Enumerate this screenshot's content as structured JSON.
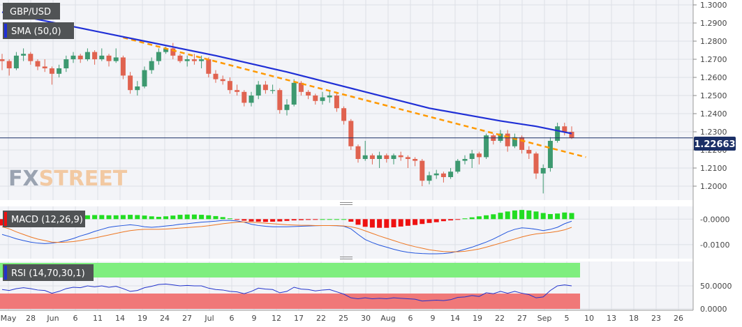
{
  "labels": {
    "symbol": "GBP/USD",
    "sma": "SMA (50,0)",
    "macd": "MACD (12,26,9)",
    "rsi": "RSI (14,70,30,1)",
    "last_price": "1.22663",
    "brand_fx": "FX",
    "brand_street": "STREET"
  },
  "colors": {
    "bull": "#3d9970",
    "bear": "#e06350",
    "sma_line": "#1f2fd6",
    "trendline": "#ff9900",
    "price_line": "#1b2f66",
    "macd_line": "#2255dd",
    "signal_line": "#ee7722",
    "hist_pos": "#22dd22",
    "hist_neg": "#ee1111",
    "rsi_line": "#2233cc",
    "rsi_overbought": "#7fee7f",
    "rsi_oversold": "#f07878",
    "pane_bg": "#f3f4f8",
    "grid": "#dcdfe6",
    "label_box": "#505355"
  },
  "chart_data": [
    {
      "type": "candlestick",
      "title": "GBP/USD",
      "ylim": [
        1.195,
        1.3
      ],
      "yticks": [
        "1.3000",
        "1.2900",
        "1.2800",
        "1.2700",
        "1.2600",
        "1.2500",
        "1.2400",
        "1.2300",
        "1.2200",
        "1.2100",
        "1.2000"
      ],
      "xticks": [
        "May",
        "28",
        "Jun",
        "6",
        "11",
        "14",
        "19",
        "24",
        "27",
        "Jul",
        "6",
        "9",
        "12",
        "17",
        "22",
        "25",
        "30",
        "Aug",
        "6",
        "9",
        "14",
        "19",
        "22",
        "27",
        "Sep",
        "5",
        "10",
        "13",
        "18",
        "23",
        "26"
      ],
      "last": 1.22663,
      "grid": true,
      "candles": [
        [
          1.27,
          1.273,
          1.264,
          1.269
        ],
        [
          1.269,
          1.27,
          1.261,
          1.265
        ],
        [
          1.265,
          1.274,
          1.264,
          1.272
        ],
        [
          1.272,
          1.276,
          1.269,
          1.273
        ],
        [
          1.273,
          1.274,
          1.267,
          1.269
        ],
        [
          1.269,
          1.27,
          1.264,
          1.266
        ],
        [
          1.266,
          1.27,
          1.263,
          1.265
        ],
        [
          1.265,
          1.266,
          1.256,
          1.262
        ],
        [
          1.262,
          1.267,
          1.26,
          1.265
        ],
        [
          1.265,
          1.272,
          1.263,
          1.27
        ],
        [
          1.27,
          1.274,
          1.268,
          1.272
        ],
        [
          1.272,
          1.273,
          1.268,
          1.27
        ],
        [
          1.27,
          1.276,
          1.269,
          1.274
        ],
        [
          1.274,
          1.275,
          1.267,
          1.27
        ],
        [
          1.27,
          1.276,
          1.269,
          1.272
        ],
        [
          1.272,
          1.273,
          1.266,
          1.269
        ],
        [
          1.269,
          1.276,
          1.268,
          1.271
        ],
        [
          1.271,
          1.272,
          1.259,
          1.261
        ],
        [
          1.261,
          1.263,
          1.251,
          1.253
        ],
        [
          1.253,
          1.258,
          1.25,
          1.255
        ],
        [
          1.255,
          1.266,
          1.254,
          1.264
        ],
        [
          1.264,
          1.271,
          1.262,
          1.269
        ],
        [
          1.269,
          1.276,
          1.267,
          1.274
        ],
        [
          1.274,
          1.277,
          1.273,
          1.276
        ],
        [
          1.276,
          1.279,
          1.27,
          1.272
        ],
        [
          1.272,
          1.273,
          1.268,
          1.269
        ],
        [
          1.269,
          1.272,
          1.266,
          1.27
        ],
        [
          1.27,
          1.273,
          1.267,
          1.269
        ],
        [
          1.269,
          1.272,
          1.265,
          1.27
        ],
        [
          1.27,
          1.271,
          1.26,
          1.262
        ],
        [
          1.262,
          1.264,
          1.257,
          1.259
        ],
        [
          1.259,
          1.261,
          1.256,
          1.258
        ],
        [
          1.258,
          1.26,
          1.251,
          1.253
        ],
        [
          1.253,
          1.256,
          1.25,
          1.252
        ],
        [
          1.252,
          1.253,
          1.244,
          1.246
        ],
        [
          1.246,
          1.252,
          1.244,
          1.25
        ],
        [
          1.25,
          1.258,
          1.248,
          1.256
        ],
        [
          1.256,
          1.258,
          1.251,
          1.253
        ],
        [
          1.253,
          1.256,
          1.251,
          1.253
        ],
        [
          1.253,
          1.254,
          1.24,
          1.242
        ],
        [
          1.242,
          1.248,
          1.239,
          1.245
        ],
        [
          1.245,
          1.259,
          1.244,
          1.257
        ],
        [
          1.257,
          1.258,
          1.25,
          1.252
        ],
        [
          1.252,
          1.253,
          1.248,
          1.25
        ],
        [
          1.25,
          1.251,
          1.245,
          1.247
        ],
        [
          1.247,
          1.252,
          1.245,
          1.249
        ],
        [
          1.249,
          1.253,
          1.246,
          1.25
        ],
        [
          1.25,
          1.252,
          1.241,
          1.243
        ],
        [
          1.243,
          1.244,
          1.234,
          1.236
        ],
        [
          1.236,
          1.237,
          1.22,
          1.222
        ],
        [
          1.222,
          1.223,
          1.213,
          1.215
        ],
        [
          1.215,
          1.225,
          1.214,
          1.217
        ],
        [
          1.217,
          1.218,
          1.212,
          1.215
        ],
        [
          1.215,
          1.219,
          1.21,
          1.217
        ],
        [
          1.217,
          1.218,
          1.213,
          1.215
        ],
        [
          1.215,
          1.218,
          1.212,
          1.217
        ],
        [
          1.217,
          1.219,
          1.214,
          1.216
        ],
        [
          1.216,
          1.217,
          1.21,
          1.215
        ],
        [
          1.215,
          1.216,
          1.211,
          1.214
        ],
        [
          1.214,
          1.215,
          1.2,
          1.203
        ],
        [
          1.203,
          1.208,
          1.201,
          1.206
        ],
        [
          1.206,
          1.209,
          1.204,
          1.207
        ],
        [
          1.207,
          1.208,
          1.202,
          1.205
        ],
        [
          1.205,
          1.21,
          1.204,
          1.208
        ],
        [
          1.208,
          1.215,
          1.207,
          1.214
        ],
        [
          1.214,
          1.217,
          1.212,
          1.215
        ],
        [
          1.215,
          1.22,
          1.21,
          1.218
        ],
        [
          1.218,
          1.219,
          1.212,
          1.216
        ],
        [
          1.216,
          1.229,
          1.215,
          1.228
        ],
        [
          1.228,
          1.229,
          1.223,
          1.225
        ],
        [
          1.225,
          1.231,
          1.224,
          1.229
        ],
        [
          1.229,
          1.231,
          1.219,
          1.222
        ],
        [
          1.222,
          1.229,
          1.221,
          1.227
        ],
        [
          1.227,
          1.228,
          1.218,
          1.22
        ],
        [
          1.22,
          1.222,
          1.215,
          1.218
        ],
        [
          1.218,
          1.219,
          1.204,
          1.207
        ],
        [
          1.207,
          1.212,
          1.196,
          1.21
        ],
        [
          1.21,
          1.227,
          1.208,
          1.225
        ],
        [
          1.225,
          1.235,
          1.224,
          1.233
        ],
        [
          1.233,
          1.235,
          1.228,
          1.23
        ],
        [
          1.23,
          1.233,
          1.226,
          1.2266
        ]
      ]
    },
    {
      "type": "line",
      "title": "SMA (50,0)",
      "x_index": [
        0,
        10,
        20,
        30,
        40,
        50,
        60,
        70,
        75,
        80
      ],
      "values": [
        1.296,
        1.288,
        1.28,
        1.272,
        1.263,
        1.253,
        1.243,
        1.236,
        1.233,
        1.229
      ]
    },
    {
      "type": "line",
      "title": "trendline",
      "x_index": [
        17,
        82
      ],
      "values": [
        1.282,
        1.216
      ]
    },
    {
      "type": "bar",
      "title": "MACD (12,26,9)",
      "ylim": [
        -0.0155,
        0.005
      ],
      "yticks": [
        "-0.0000",
        "-0.0100"
      ],
      "histogram": [
        -0.0025,
        -0.002,
        -0.0012,
        -0.0006,
        -0.0002,
        0.0002,
        0.0004,
        0.0006,
        0.0008,
        0.001,
        0.0012,
        0.0014,
        0.0015,
        0.0016,
        0.0016,
        0.0015,
        0.0015,
        0.0016,
        0.0017,
        0.0016,
        0.0014,
        0.0011,
        0.0009,
        0.0011,
        0.0014,
        0.0017,
        0.0018,
        0.0018,
        0.0017,
        0.0015,
        0.0012,
        0.0008,
        0.0003,
        -0.0002,
        -0.0006,
        -0.0009,
        -0.001,
        -0.0011,
        -0.001,
        -0.0009,
        -0.0007,
        -0.0005,
        -0.0004,
        -0.0003,
        -0.0001,
        0.0,
        0.0,
        0.0,
        0.0,
        -0.001,
        -0.0022,
        -0.003,
        -0.0033,
        -0.0034,
        -0.0034,
        -0.0032,
        -0.0029,
        -0.0026,
        -0.0023,
        -0.0019,
        -0.0015,
        -0.0012,
        -0.0008,
        -0.0005,
        -0.0001,
        0.0003,
        0.0007,
        0.0011,
        0.0015,
        0.0019,
        0.0025,
        0.003,
        0.0034,
        0.0036,
        0.0034,
        0.003,
        0.0024,
        0.002,
        0.0022,
        0.0026,
        0.0024
      ],
      "macd": [
        -0.006,
        -0.0068,
        -0.0077,
        -0.0084,
        -0.009,
        -0.0094,
        -0.0096,
        -0.0094,
        -0.009,
        -0.0084,
        -0.0076,
        -0.0066,
        -0.0058,
        -0.0048,
        -0.004,
        -0.0032,
        -0.0028,
        -0.0025,
        -0.0022,
        -0.0025,
        -0.003,
        -0.0032,
        -0.003,
        -0.0027,
        -0.0024,
        -0.002,
        -0.0018,
        -0.0015,
        -0.0012,
        -0.001,
        -0.0008,
        -0.0005,
        -0.0005,
        -0.0007,
        -0.0012,
        -0.002,
        -0.0025,
        -0.0028,
        -0.003,
        -0.003,
        -0.003,
        -0.0029,
        -0.0028,
        -0.0027,
        -0.0026,
        -0.0025,
        -0.0025,
        -0.0026,
        -0.0028,
        -0.0038,
        -0.006,
        -0.008,
        -0.0092,
        -0.0102,
        -0.011,
        -0.0118,
        -0.0125,
        -0.013,
        -0.0133,
        -0.0135,
        -0.0136,
        -0.0136,
        -0.0135,
        -0.0132,
        -0.0126,
        -0.0118,
        -0.011,
        -0.01,
        -0.009,
        -0.0078,
        -0.0064,
        -0.005,
        -0.004,
        -0.0034,
        -0.0036,
        -0.004,
        -0.0045,
        -0.004,
        -0.0032,
        -0.0018,
        -0.0008
      ],
      "signal": [
        -0.003,
        -0.0038,
        -0.005,
        -0.006,
        -0.007,
        -0.0078,
        -0.0084,
        -0.009,
        -0.0091,
        -0.009,
        -0.0088,
        -0.0084,
        -0.0079,
        -0.0074,
        -0.0068,
        -0.0062,
        -0.0056,
        -0.005,
        -0.0045,
        -0.0042,
        -0.004,
        -0.004,
        -0.004,
        -0.0039,
        -0.0037,
        -0.0035,
        -0.0033,
        -0.0031,
        -0.0029,
        -0.0026,
        -0.0022,
        -0.0018,
        -0.0015,
        -0.0012,
        -0.0011,
        -0.0012,
        -0.0014,
        -0.0016,
        -0.0018,
        -0.002,
        -0.0022,
        -0.0023,
        -0.0024,
        -0.0024,
        -0.0025,
        -0.0025,
        -0.0025,
        -0.0025,
        -0.0027,
        -0.003,
        -0.0036,
        -0.0046,
        -0.0056,
        -0.0066,
        -0.0075,
        -0.0084,
        -0.0093,
        -0.0101,
        -0.0108,
        -0.0114,
        -0.012,
        -0.0124,
        -0.0127,
        -0.0128,
        -0.0128,
        -0.0126,
        -0.0122,
        -0.0117,
        -0.011,
        -0.0102,
        -0.0094,
        -0.0086,
        -0.0078,
        -0.007,
        -0.0063,
        -0.0058,
        -0.0055,
        -0.0052,
        -0.0048,
        -0.0042,
        -0.0032
      ]
    },
    {
      "type": "line",
      "title": "RSI (14,70,30,1)",
      "ylim": [
        0,
        100
      ],
      "yticks": [
        "50.0000",
        "0.0000"
      ],
      "overbought": 70,
      "oversold": 30,
      "values": [
        42,
        40,
        44,
        46,
        44,
        41,
        40,
        34,
        38,
        44,
        47,
        46,
        50,
        48,
        50,
        47,
        49,
        44,
        38,
        40,
        46,
        49,
        53,
        54,
        52,
        50,
        51,
        50,
        50,
        45,
        42,
        41,
        38,
        37,
        33,
        38,
        45,
        43,
        42,
        35,
        38,
        47,
        43,
        42,
        39,
        41,
        42,
        37,
        32,
        24,
        22,
        24,
        22,
        23,
        22,
        24,
        23,
        22,
        21,
        17,
        18,
        19,
        18,
        20,
        25,
        26,
        29,
        27,
        35,
        33,
        38,
        34,
        38,
        34,
        31,
        24,
        26,
        40,
        50,
        52,
        50
      ]
    }
  ]
}
